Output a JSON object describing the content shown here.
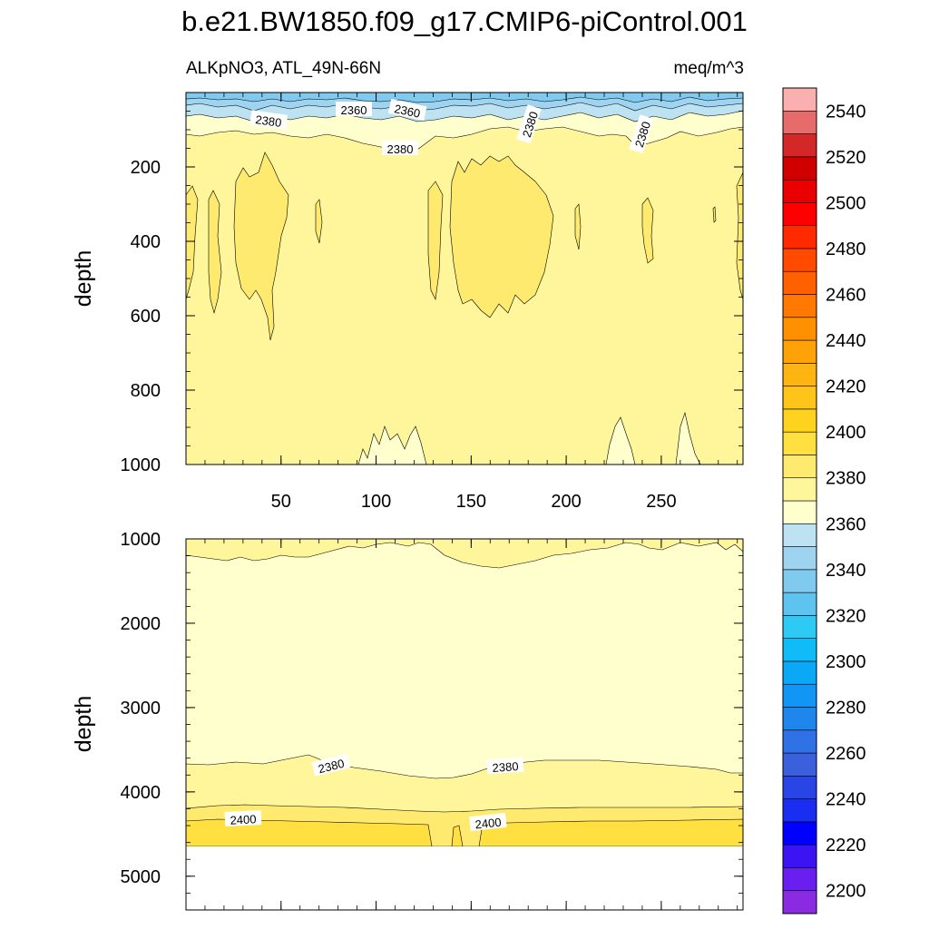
{
  "chart_data": {
    "type": "heatmap",
    "title": "b.e21.BW1850.f09_g17.CMIP6-piControl.001",
    "subtitle_left": "ALKpNO3, ATL_49N-66N",
    "subtitle_right": "meq/m^3",
    "colorbar": {
      "levels": [
        2200,
        2210,
        2220,
        2230,
        2240,
        2250,
        2260,
        2270,
        2280,
        2290,
        2300,
        2310,
        2320,
        2330,
        2340,
        2350,
        2360,
        2370,
        2380,
        2390,
        2400,
        2410,
        2420,
        2430,
        2440,
        2450,
        2460,
        2470,
        2480,
        2490,
        2500,
        2510,
        2520,
        2530,
        2540,
        2550
      ],
      "tick_labels": [
        "2200",
        "2220",
        "2240",
        "2260",
        "2280",
        "2300",
        "2320",
        "2340",
        "2360",
        "2380",
        "2400",
        "2420",
        "2440",
        "2460",
        "2480",
        "2500",
        "2520",
        "2540"
      ],
      "colors": [
        "#8a2be2",
        "#6a1ef0",
        "#3a14f2",
        "#0000ff",
        "#1a2ef2",
        "#2a45e6",
        "#3a60dd",
        "#2f72e8",
        "#1f86ee",
        "#1296f5",
        "#0aa8f7",
        "#10bcf8",
        "#2ccaf4",
        "#5ec3ef",
        "#7fcaee",
        "#9fd4f1",
        "#bde3f3",
        "#ffffce",
        "#fff59a",
        "#ffea70",
        "#ffe040",
        "#ffd21e",
        "#ffc41a",
        "#ffb412",
        "#ffa208",
        "#ff9000",
        "#ff7800",
        "#ff6000",
        "#ff4a00",
        "#ff2a00",
        "#ff0000",
        "#ea0000",
        "#d00000",
        "#d42828",
        "#e86b6b",
        "#fbb0b0"
      ]
    },
    "panels": [
      {
        "name": "upper",
        "xlabel": "",
        "ylabel": "depth",
        "x_range": [
          0,
          293
        ],
        "y_range": [
          0,
          1000
        ],
        "y_ticks": [
          "200",
          "400",
          "600",
          "800",
          "1000"
        ],
        "x_ticks": [
          "50",
          "100",
          "150",
          "200",
          "250"
        ],
        "contour_labels": [
          "2380",
          "2360",
          "2360",
          "2380",
          "2380",
          "2380"
        ]
      },
      {
        "name": "lower",
        "xlabel": "",
        "ylabel": "depth",
        "x_range": [
          0,
          293
        ],
        "y_range": [
          1000,
          5400
        ],
        "y_ticks": [
          "1000",
          "2000",
          "3000",
          "4000",
          "5000"
        ],
        "x_ticks": [],
        "contour_labels": [
          "2380",
          "2380",
          "2400",
          "2400"
        ]
      }
    ]
  }
}
